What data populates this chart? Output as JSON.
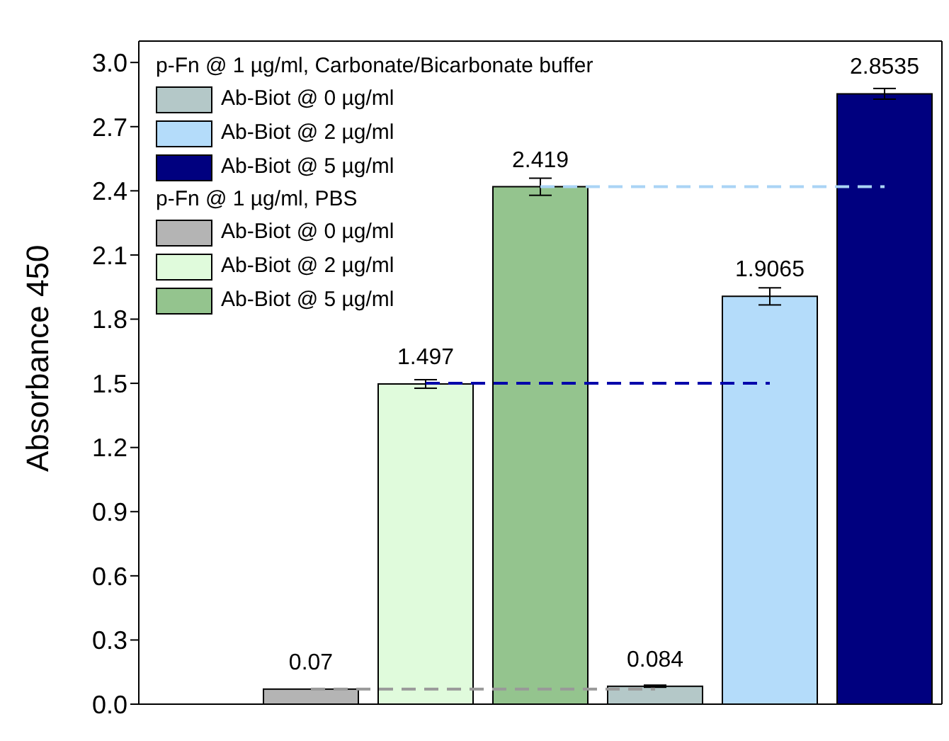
{
  "chart_data": {
    "type": "bar",
    "ylabel": "Absorbance 450",
    "categories": [
      null,
      null,
      null,
      null,
      null,
      null,
      null
    ],
    "annotations": [
      "p-Fn @ 1 µg/ml, Carbonate/Bicarbonate buffer",
      "p-Fn @ 1 µg/ml, PBS"
    ],
    "series": [
      {
        "name": "Ab-Biot @ 0 µg/ml",
        "color": "#b4c8c8",
        "values": [
          null,
          null,
          null,
          null,
          0.084,
          null,
          null
        ],
        "errors": [
          null,
          null,
          null,
          null,
          0.005,
          null,
          null
        ],
        "value_labels": [
          null,
          null,
          null,
          null,
          "0.084",
          null,
          null
        ]
      },
      {
        "name": "Ab-Biot @ 2 µg/ml",
        "color": "#b4dcfa",
        "values": [
          null,
          null,
          null,
          null,
          null,
          1.9065,
          null
        ],
        "errors": [
          null,
          null,
          null,
          null,
          null,
          0.04,
          null
        ],
        "value_labels": [
          null,
          null,
          null,
          null,
          null,
          "1.9065",
          null
        ]
      },
      {
        "name": "Ab-Biot @ 5 µg/ml",
        "color": "#00007f",
        "values": [
          null,
          null,
          null,
          null,
          null,
          null,
          2.8535
        ],
        "errors": [
          null,
          null,
          null,
          null,
          null,
          null,
          0.025
        ],
        "value_labels": [
          null,
          null,
          null,
          null,
          null,
          null,
          "2.8535"
        ]
      },
      {
        "name": "Ab-Biot @ 0 µg/ml",
        "color": "#b4b4b4",
        "values": [
          null,
          0.07,
          null,
          null,
          null,
          null,
          null
        ],
        "value_labels": [
          null,
          "0.07",
          null,
          null,
          null,
          null,
          null
        ]
      },
      {
        "name": "Ab-Biot @ 2 µg/ml",
        "color": "#e0fbdc",
        "values": [
          null,
          null,
          1.497,
          null,
          null,
          null,
          null
        ],
        "errors": [
          null,
          null,
          0.02,
          null,
          null,
          null,
          null
        ],
        "value_labels": [
          null,
          null,
          "1.497",
          null,
          null,
          null,
          null
        ]
      },
      {
        "name": "Ab-Biot @ 5 µg/ml",
        "color": "#94c48e",
        "values": [
          null,
          null,
          null,
          2.419,
          null,
          null,
          null
        ],
        "errors": [
          null,
          null,
          null,
          0.04,
          null,
          null,
          null
        ],
        "value_labels": [
          null,
          null,
          null,
          "2.419",
          null,
          null,
          null
        ]
      },
      {
        "type": "line",
        "color": "#999999",
        "line_style": "dashed",
        "values": [
          null,
          0.07,
          null,
          null,
          0.07,
          null,
          null
        ]
      },
      {
        "type": "line",
        "color": "#0000aa",
        "line_style": "dashed",
        "values": [
          null,
          null,
          1.5,
          null,
          null,
          1.5,
          null
        ]
      },
      {
        "type": "line",
        "color": "#aad4f5",
        "line_style": "dashed",
        "values": [
          null,
          null,
          null,
          2.419,
          null,
          null,
          2.419
        ]
      }
    ],
    "legend": "top left",
    "grid": false,
    "ylim": [
      0,
      3.1
    ],
    "yticks": [
      {
        "value": 0,
        "label": "0.0"
      },
      0.3,
      0.6,
      0.9,
      1.2,
      1.5,
      1.8,
      2.1,
      2.4,
      2.7,
      {
        "value": 3,
        "label": "3.0"
      }
    ]
  }
}
